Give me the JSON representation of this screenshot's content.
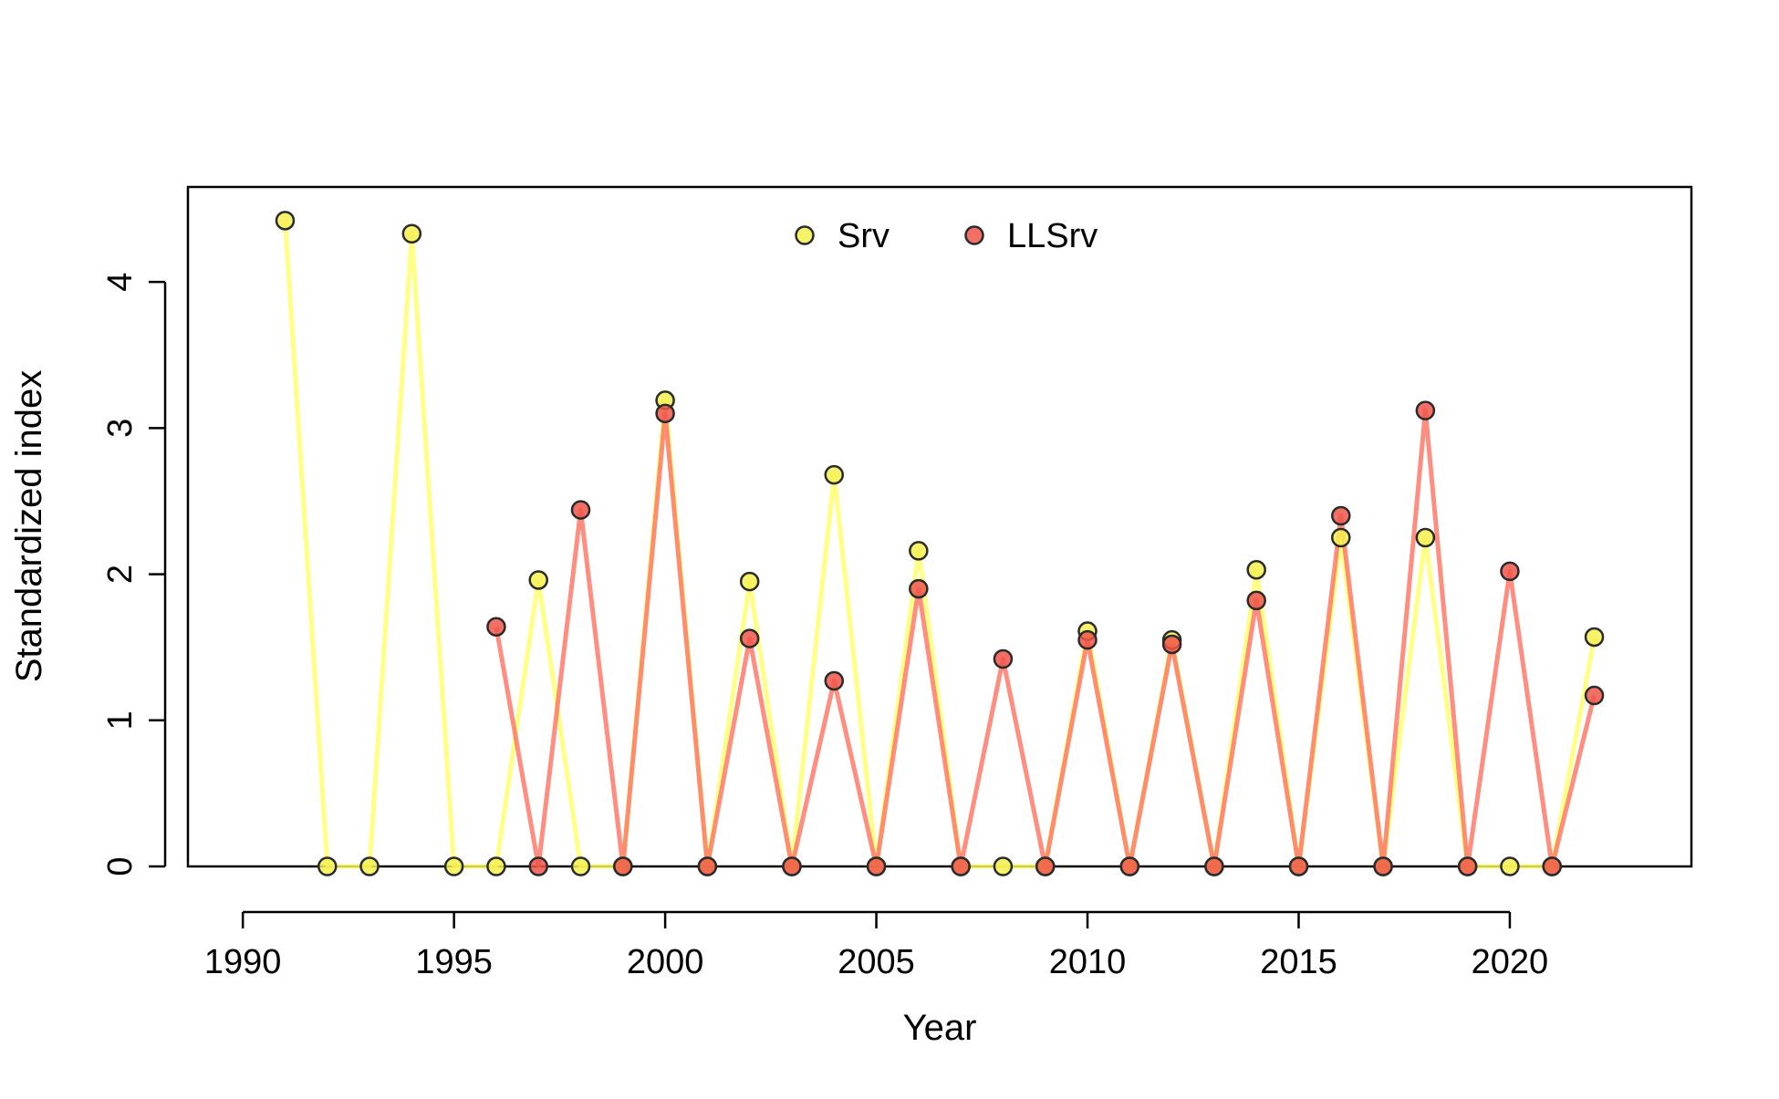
{
  "chart_data": {
    "type": "line",
    "title": "",
    "xlabel": "Year",
    "ylabel": "Standardized index",
    "xlim": [
      1988.7,
      2024.3
    ],
    "ylim": [
      0,
      4.65
    ],
    "x_ticks": [
      1990,
      1995,
      2000,
      2005,
      2010,
      2015,
      2020
    ],
    "y_ticks": [
      0,
      1,
      2,
      3,
      4
    ],
    "grid": false,
    "legend_position": "top-center",
    "series": [
      {
        "name": "Srv",
        "line_color": "#FFFF66",
        "point_fill": "#F5F050",
        "points": [
          [
            1991,
            4.42
          ],
          [
            1992,
            0
          ],
          [
            1993,
            0
          ],
          [
            1994,
            4.33
          ],
          [
            1995,
            0
          ],
          [
            1996,
            0
          ],
          [
            1997,
            1.96
          ],
          [
            1998,
            0
          ],
          [
            1999,
            0
          ],
          [
            2000,
            3.19
          ],
          [
            2001,
            0
          ],
          [
            2002,
            1.95
          ],
          [
            2003,
            0
          ],
          [
            2004,
            2.68
          ],
          [
            2005,
            0
          ],
          [
            2006,
            2.16
          ],
          [
            2007,
            0
          ],
          [
            2008,
            0
          ],
          [
            2009,
            0
          ],
          [
            2010,
            1.61
          ],
          [
            2011,
            0
          ],
          [
            2012,
            1.55
          ],
          [
            2013,
            0
          ],
          [
            2014,
            2.03
          ],
          [
            2015,
            0
          ],
          [
            2016,
            2.25
          ],
          [
            2017,
            0
          ],
          [
            2018,
            2.25
          ],
          [
            2019,
            0
          ],
          [
            2020,
            0
          ],
          [
            2021,
            0
          ],
          [
            2022,
            1.57
          ]
        ]
      },
      {
        "name": "LLSrv",
        "line_color": "#FF7060",
        "point_fill": "#F0564A",
        "points": [
          [
            1996,
            1.64
          ],
          [
            1997,
            0
          ],
          [
            1998,
            2.44
          ],
          [
            1999,
            0
          ],
          [
            2000,
            3.1
          ],
          [
            2001,
            0
          ],
          [
            2002,
            1.56
          ],
          [
            2003,
            0
          ],
          [
            2004,
            1.27
          ],
          [
            2005,
            0
          ],
          [
            2006,
            1.9
          ],
          [
            2007,
            0
          ],
          [
            2008,
            1.42
          ],
          [
            2009,
            0
          ],
          [
            2010,
            1.55
          ],
          [
            2011,
            0
          ],
          [
            2012,
            1.52
          ],
          [
            2013,
            0
          ],
          [
            2014,
            1.82
          ],
          [
            2015,
            0
          ],
          [
            2016,
            2.4
          ],
          [
            2017,
            0
          ],
          [
            2018,
            3.12
          ],
          [
            2019,
            0
          ],
          [
            2020,
            2.02
          ],
          [
            2021,
            0
          ],
          [
            2022,
            1.17
          ]
        ]
      }
    ]
  }
}
